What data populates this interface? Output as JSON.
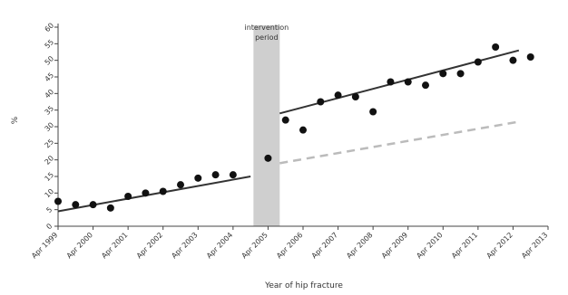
{
  "chart_data": {
    "type": "scatter",
    "xlabel": "Year of hip fracture",
    "ylabel": "%",
    "ylim": [
      0,
      60
    ],
    "y_ticks": [
      0,
      5,
      10,
      15,
      20,
      25,
      30,
      35,
      40,
      45,
      50,
      55,
      60
    ],
    "x_ticks": [
      "Apr 1999",
      "Apr 2000",
      "Apr 2001",
      "Apr 2002",
      "Apr 2003",
      "Apr 2004",
      "Apr 2005",
      "Apr 2006",
      "Apr 2007",
      "Apr 2008",
      "Apr 2009",
      "Apr 2010",
      "Apr 2011",
      "Apr 2012",
      "Apr 2013"
    ],
    "xlim": [
      "Apr 1999",
      "Apr 2013"
    ],
    "grid": false,
    "annotation": {
      "label_line1": "intervention",
      "label_line2": "period",
      "start": "Nov 2004",
      "end": "Aug 2005"
    },
    "points": [
      {
        "x": "Apr 1999",
        "y": 7.5
      },
      {
        "x": "Oct 1999",
        "y": 6.5
      },
      {
        "x": "Apr 2000",
        "y": 6.5
      },
      {
        "x": "Oct 2000",
        "y": 5.5
      },
      {
        "x": "Apr 2001",
        "y": 9
      },
      {
        "x": "Oct 2001",
        "y": 10
      },
      {
        "x": "Apr 2002",
        "y": 10.5
      },
      {
        "x": "Oct 2002",
        "y": 12.5
      },
      {
        "x": "Apr 2003",
        "y": 14.5
      },
      {
        "x": "Oct 2003",
        "y": 15.5
      },
      {
        "x": "Apr 2004",
        "y": 15.5
      },
      {
        "x": "Apr 2005",
        "y": 20.5
      },
      {
        "x": "Oct 2005",
        "y": 32
      },
      {
        "x": "Apr 2006",
        "y": 29
      },
      {
        "x": "Oct 2006",
        "y": 37.5
      },
      {
        "x": "Apr 2007",
        "y": 39.5
      },
      {
        "x": "Oct 2007",
        "y": 39
      },
      {
        "x": "Apr 2008",
        "y": 34.5
      },
      {
        "x": "Oct 2008",
        "y": 43.5
      },
      {
        "x": "Apr 2009",
        "y": 43.5
      },
      {
        "x": "Oct 2009",
        "y": 42.5
      },
      {
        "x": "Apr 2010",
        "y": 46
      },
      {
        "x": "Oct 2010",
        "y": 46
      },
      {
        "x": "Apr 2011",
        "y": 49.5
      },
      {
        "x": "Oct 2011",
        "y": 54
      },
      {
        "x": "Apr 2012",
        "y": 50
      },
      {
        "x": "Oct 2012",
        "y": 51
      }
    ],
    "trend_lines": [
      {
        "style": "solid",
        "color": "#333333",
        "from": {
          "x": "Apr 1999",
          "y": 4.5
        },
        "to": {
          "x": "Oct 2004",
          "y": 15
        }
      },
      {
        "style": "solid",
        "color": "#333333",
        "from": {
          "x": "Aug 2005",
          "y": 34
        },
        "to": {
          "x": "Jun 2012",
          "y": 53
        }
      },
      {
        "style": "dashed",
        "color": "#bbbbbb",
        "from": {
          "x": "Aug 2005",
          "y": 19
        },
        "to": {
          "x": "Jun 2012",
          "y": 31.5
        }
      }
    ]
  }
}
